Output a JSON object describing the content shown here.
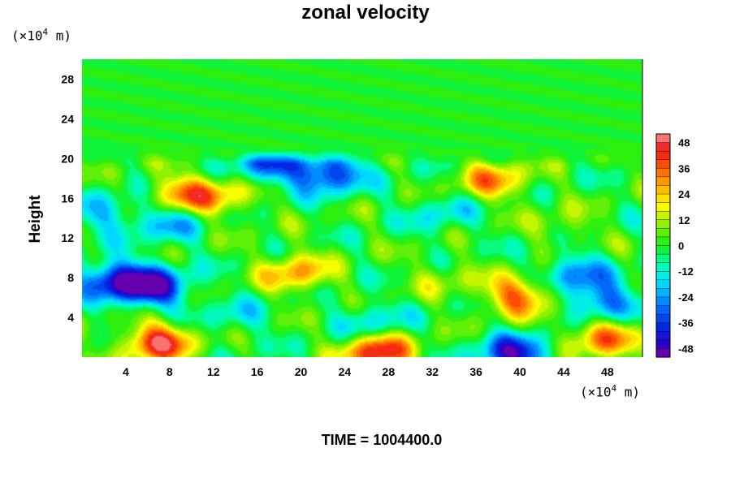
{
  "chart_data": {
    "type": "heatmap",
    "title": "zonal velocity",
    "ylabel": "Height",
    "y_unit_prefix": "(×10",
    "y_unit_exp": "4",
    "y_unit_suffix": " m)",
    "x_unit_prefix": "(×10",
    "x_unit_exp": "4",
    "x_unit_suffix": " m)",
    "x_ticks": [
      "4",
      "8",
      "12",
      "16",
      "20",
      "24",
      "28",
      "32",
      "36",
      "40",
      "44",
      "48"
    ],
    "x_tick_values": [
      4,
      8,
      12,
      16,
      20,
      24,
      28,
      32,
      36,
      40,
      44,
      48
    ],
    "y_ticks": [
      "4",
      "8",
      "12",
      "16",
      "20",
      "24",
      "28"
    ],
    "y_tick_values": [
      4,
      8,
      12,
      16,
      20,
      24,
      28
    ],
    "xlim": [
      0,
      51.2
    ],
    "ylim": [
      0,
      30
    ],
    "colorbar": {
      "ticks": [
        "48",
        "36",
        "24",
        "12",
        "0",
        "-12",
        "-24",
        "-36",
        "-48"
      ],
      "tick_values": [
        48,
        36,
        24,
        12,
        0,
        -12,
        -24,
        -36,
        -48
      ],
      "range": [
        -52,
        52
      ],
      "levels": 26
    },
    "features": [
      {
        "x": 7,
        "y": 1.5,
        "value": 44
      },
      {
        "x": 27,
        "y": 0.5,
        "value": 46
      },
      {
        "x": 40,
        "y": 6.2,
        "value": 36
      },
      {
        "x": 47.5,
        "y": 2.0,
        "value": 34
      },
      {
        "x": 19.5,
        "y": 8.5,
        "value": 28
      },
      {
        "x": 9.5,
        "y": 16.5,
        "value": 30
      },
      {
        "x": 37.5,
        "y": 17.8,
        "value": 28
      },
      {
        "x": 13,
        "y": 16,
        "value": 18
      },
      {
        "x": 6.5,
        "y": 7,
        "value": -44
      },
      {
        "x": 3,
        "y": 7.8,
        "value": -40
      },
      {
        "x": 22.5,
        "y": 18.6,
        "value": -40
      },
      {
        "x": 17,
        "y": 19.4,
        "value": -32
      },
      {
        "x": 39.5,
        "y": 0.2,
        "value": -44
      },
      {
        "x": 47.5,
        "y": 5.5,
        "value": -32
      },
      {
        "x": 26.5,
        "y": 3.5,
        "value": -18
      },
      {
        "x": 8,
        "y": 13.5,
        "value": -20
      },
      {
        "x": 2,
        "y": 14.5,
        "value": -18
      },
      {
        "x": 45,
        "y": 8.5,
        "value": -26
      },
      {
        "x": 33,
        "y": 14.5,
        "value": -14
      },
      {
        "x": 14,
        "y": 4,
        "value": -12
      },
      {
        "x": 33,
        "y": 8,
        "value": 10
      },
      {
        "x": 44,
        "y": 13,
        "value": 10
      }
    ]
  },
  "footer": {
    "time_label": "TIME = 1004400.0"
  }
}
